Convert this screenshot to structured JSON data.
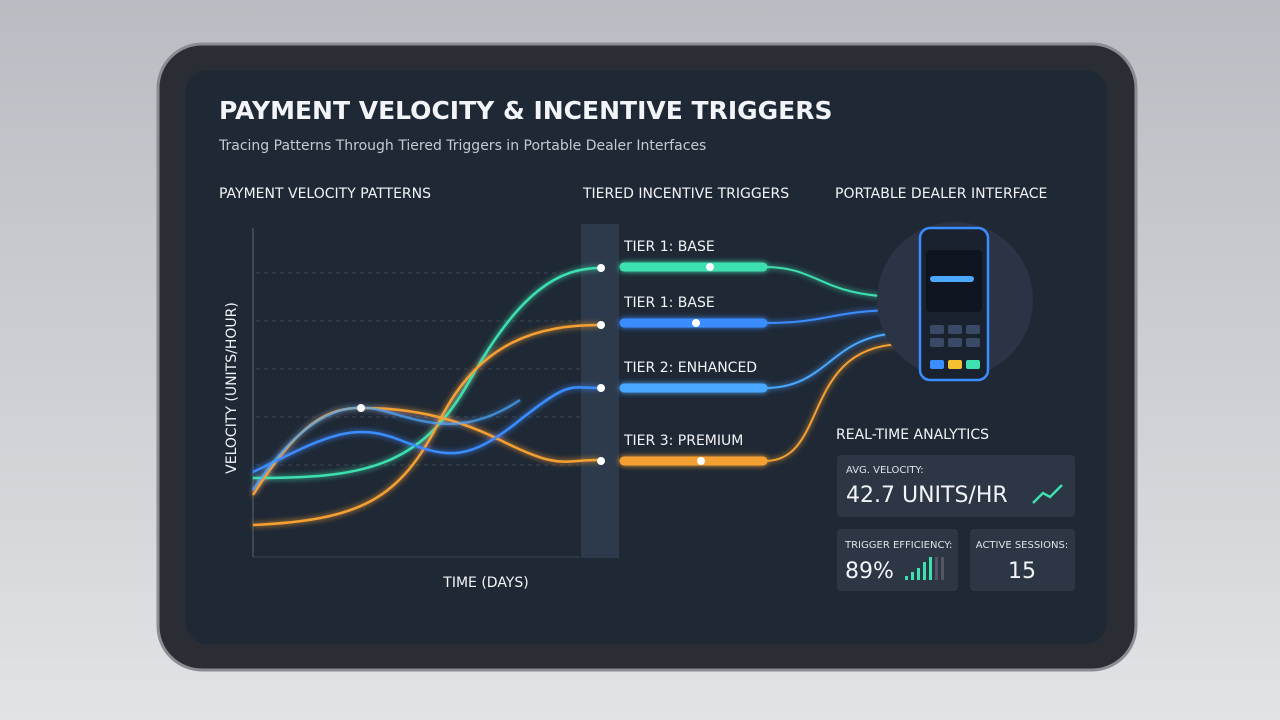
{
  "header": {
    "title": "PAYMENT VELOCITY & INCENTIVE TRIGGERS",
    "subtitle": "Tracing Patterns Through Tiered Triggers in Portable Dealer Interfaces"
  },
  "sections": {
    "patterns": "PAYMENT VELOCITY PATTERNS",
    "triggers": "TIERED INCENTIVE TRIGGERS",
    "device": "PORTABLE DEALER INTERFACE"
  },
  "chart": {
    "y_label": "VELOCITY (UNITS/HOUR)",
    "x_label": "TIME (DAYS)"
  },
  "tiers": [
    "TIER 1: BASE",
    "TIER 1: BASE",
    "TIER 2: ENHANCED",
    "TIER 3: PREMIUM"
  ],
  "analytics": {
    "title": "REAL-TIME ANALYTICS",
    "cards": [
      {
        "label": "AVG. VELOCITY:",
        "value": "42.7 UNITS/HR"
      },
      {
        "label": "TRIGGER EFFICIENCY:",
        "value": "89%"
      },
      {
        "label": "ACTIVE SESSIONS:",
        "value": "15"
      }
    ]
  }
}
